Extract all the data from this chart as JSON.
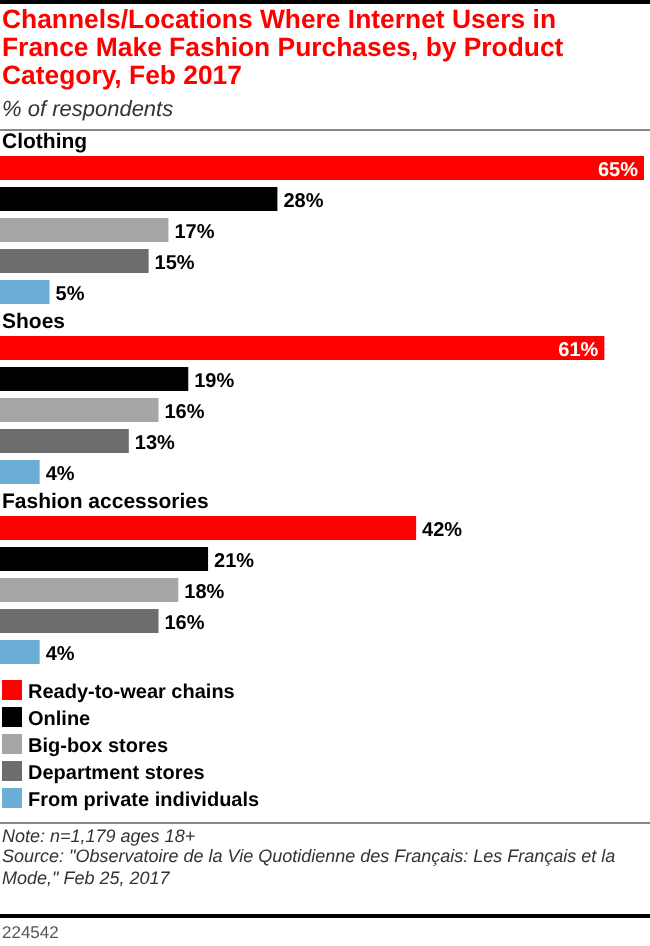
{
  "chart_data": {
    "type": "bar",
    "orientation": "horizontal",
    "title": "Channels/Locations Where Internet Users in France Make Fashion Purchases, by Product Category, Feb 2017",
    "subtitle": "% of respondents",
    "categories": [
      "Clothing",
      "Shoes",
      "Fashion accessories"
    ],
    "legend": "bottom",
    "series": [
      {
        "name": "Ready-to-wear chains",
        "color": "#ff0000",
        "values": [
          65,
          61,
          42
        ],
        "value_labels": [
          "65%",
          "61%",
          "42%"
        ]
      },
      {
        "name": "Online",
        "color": "#000000",
        "values": [
          28,
          19,
          21
        ],
        "value_labels": [
          "28%",
          "19%",
          "21%"
        ]
      },
      {
        "name": "Big-box stores",
        "color": "#a6a6a6",
        "values": [
          17,
          16,
          18
        ],
        "value_labels": [
          "17%",
          "16%",
          "18%"
        ]
      },
      {
        "name": "Department stores",
        "color": "#6d6d6d",
        "values": [
          15,
          13,
          16
        ],
        "value_labels": [
          "15%",
          "13%",
          "16%"
        ]
      },
      {
        "name": "From private individuals",
        "color": "#6aaed6",
        "values": [
          5,
          4,
          4
        ],
        "value_labels": [
          "5%",
          "4%",
          "4%"
        ]
      }
    ],
    "annotations": [
      "Note: n=1,179 ages 18+",
      "Source: \"Observatoire de la Vie Quotidienne des Français: Les Français et la Mode,\" Feb 25, 2017",
      "224542"
    ]
  }
}
